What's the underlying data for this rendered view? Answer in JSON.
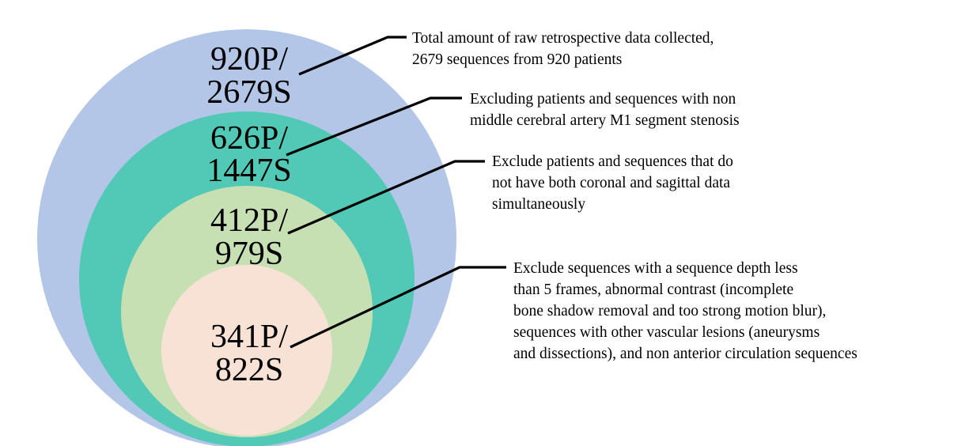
{
  "colors": {
    "level_1_fill": "#b3c6e7",
    "level_2_fill": "#52c9b6",
    "level_3_fill": "#c6e0b4",
    "level_4_fill": "#f8e2d5",
    "line": "#000000",
    "text": "#000000"
  },
  "levels": [
    {
      "count_line1": "920P/",
      "count_line2": "2679S",
      "description": [
        "Total amount of raw retrospective data collected,",
        "2679 sequences from 920 patients"
      ]
    },
    {
      "count_line1": "626P/",
      "count_line2": "1447S",
      "description": [
        "Excluding patients and sequences with non",
        "middle cerebral artery M1 segment stenosis"
      ]
    },
    {
      "count_line1": "412P/",
      "count_line2": "979S",
      "description": [
        "Exclude patients and sequences that do",
        "not have both coronal and sagittal data",
        "simultaneously"
      ]
    },
    {
      "count_line1": "341P/",
      "count_line2": "822S",
      "description": [
        "Exclude sequences with a sequence depth less",
        "than 5 frames, abnormal contrast (incomplete",
        "bone shadow removal and too strong motion blur),",
        "sequences with other vascular lesions (aneurysms",
        "and dissections), and non anterior circulation sequences"
      ]
    }
  ]
}
